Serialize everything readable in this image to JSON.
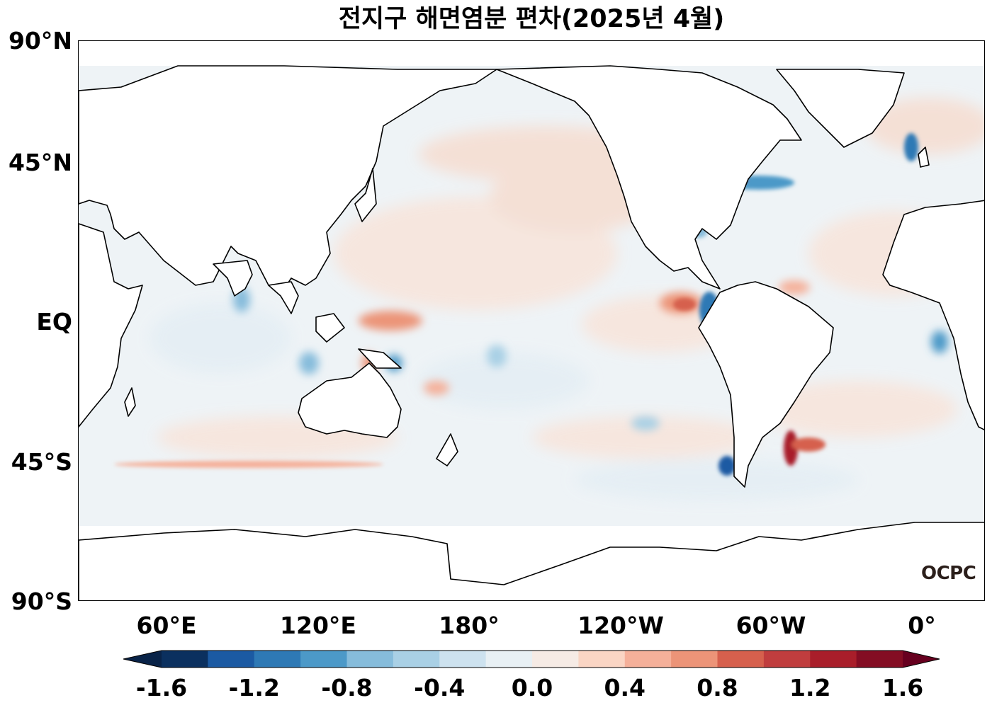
{
  "title": "전지구 해면염분 편차(2025년 4월)",
  "watermark": "OCPC",
  "lat_labels": [
    "90°N",
    "45°N",
    "EQ",
    "45°S",
    "90°S"
  ],
  "lon_labels": [
    "60°E",
    "120°E",
    "180°",
    "120°W",
    "60°W",
    "0°"
  ],
  "colorbar": {
    "tick_labels": [
      "-1.6",
      "-1.2",
      "-0.8",
      "-0.4",
      "0.0",
      "0.4",
      "0.8",
      "1.2",
      "1.6"
    ],
    "levels": [
      -1.6,
      -1.4,
      -1.2,
      -1.0,
      -0.8,
      -0.6,
      -0.4,
      -0.2,
      0.0,
      0.2,
      0.4,
      0.6,
      0.8,
      1.0,
      1.2,
      1.4,
      1.6
    ],
    "colors": [
      "#0b305f",
      "#1b5aa3",
      "#2e79b5",
      "#4c99c8",
      "#86bcdb",
      "#a9d0e5",
      "#cde2ef",
      "#e8f0f4",
      "#f6ebe5",
      "#fad5c4",
      "#f5b09a",
      "#ec9478",
      "#d6604d",
      "#c03d3e",
      "#a91e2a",
      "#840d23"
    ],
    "under_color": "#092348",
    "over_color": "#67001f",
    "extend": "both"
  },
  "map": {
    "land_color": "#ffffff",
    "coastline_color": "#000000",
    "background_field_color": "#eef3f6"
  }
}
